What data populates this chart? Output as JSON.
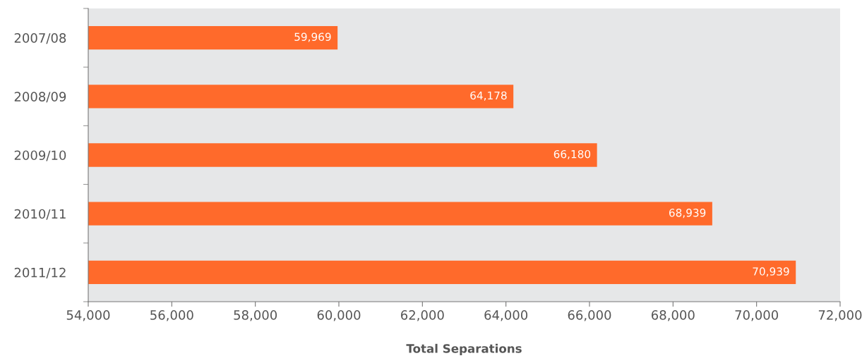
{
  "chart_data": {
    "type": "bar",
    "orientation": "horizontal",
    "xlabel": "Total Separations",
    "categories": [
      "2007/08",
      "2008/09",
      "2009/10",
      "2010/11",
      "2011/12"
    ],
    "values": [
      59969,
      64178,
      66180,
      68939,
      70939
    ],
    "value_labels": [
      "59,969",
      "64,178",
      "66,180",
      "68,939",
      "70,939"
    ],
    "color": "#ff6a2b",
    "xlim": [
      54000,
      72000
    ],
    "xticks": [
      {
        "value": 54000,
        "label": "54,000"
      },
      {
        "value": 56000,
        "label": "56,000"
      },
      {
        "value": 58000,
        "label": "58,000"
      },
      {
        "value": 60000,
        "label": "60,000"
      },
      {
        "value": 62000,
        "label": "62,000"
      },
      {
        "value": 64000,
        "label": "64,000"
      },
      {
        "value": 66000,
        "label": "66,000"
      },
      {
        "value": 68000,
        "label": "68,000"
      },
      {
        "value": 70000,
        "label": "70,000"
      },
      {
        "value": 72000,
        "label": "72,000"
      }
    ],
    "grid": false,
    "legend": false
  }
}
